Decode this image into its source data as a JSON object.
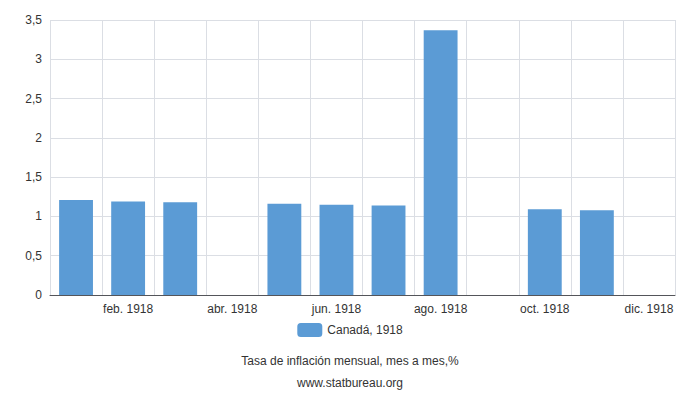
{
  "chart_data": {
    "type": "bar",
    "subtitle": "Tasa de inflación mensual, mes a mes,%",
    "source": "www.statbureau.org",
    "categories": [
      null,
      "feb. 1918",
      null,
      "abr. 1918",
      null,
      "jun. 1918",
      null,
      "ago. 1918",
      null,
      "oct. 1918",
      null,
      "dic. 1918"
    ],
    "series": [
      {
        "name": "Canadá, 1918",
        "color": "#5b9bd5",
        "values": [
          1.21,
          1.19,
          1.18,
          null,
          1.16,
          1.15,
          1.14,
          3.37,
          null,
          1.09,
          1.08,
          null
        ]
      }
    ],
    "ylim": [
      0,
      3.5
    ],
    "yticks": [
      0,
      {
        "value": 0.5,
        "label": "0,5"
      },
      1,
      {
        "value": 1.5,
        "label": "1,5"
      },
      2,
      {
        "value": 2.5,
        "label": "2,5"
      },
      3,
      {
        "value": 3.5,
        "label": "3,5"
      }
    ],
    "grid": true,
    "legend": "bottom"
  }
}
